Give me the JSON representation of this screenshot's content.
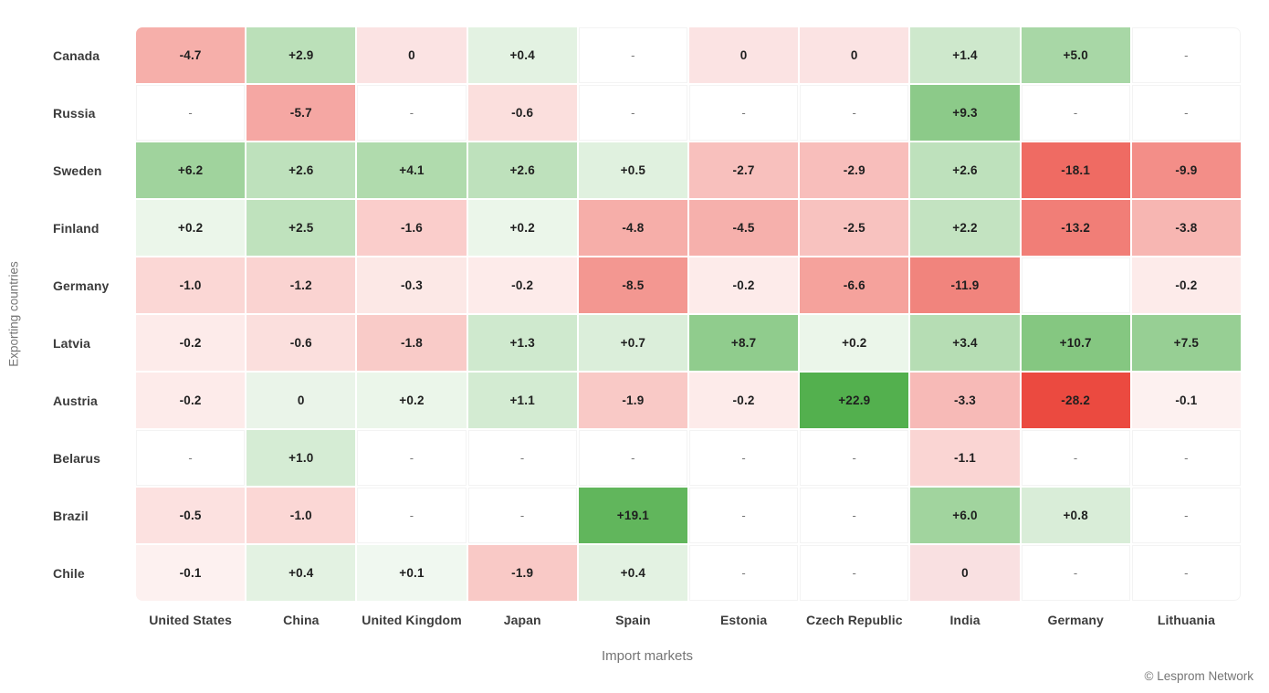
{
  "chart_data": {
    "type": "heatmap",
    "title": "",
    "xlabel": "Import markets",
    "ylabel": "Exporting countries",
    "legend_position": "none",
    "grid": "2px white separators between cells",
    "colors": {
      "positive_max": "#53b04e",
      "negative_max": "#eb4a40",
      "neutral_empty": "#ffffff",
      "cell_text": "#1f1f1f",
      "label_text": "#3c3c3c",
      "axis_text": "#757575"
    },
    "columns": [
      "United States",
      "China",
      "United Kingdom",
      "Japan",
      "Spain",
      "Estonia",
      "Czech Republic",
      "India",
      "Germany",
      "Lithuania"
    ],
    "rows": [
      {
        "label": "Canada",
        "cells": [
          [
            "-4.7",
            "#f6afaa"
          ],
          [
            "+2.9",
            "#bbe0b9"
          ],
          [
            "0",
            "#fbe3e3"
          ],
          [
            "+0.4",
            "#e3f2e2"
          ],
          [
            "-",
            "#ffffff"
          ],
          [
            "0",
            "#fbe3e3"
          ],
          [
            "0",
            "#fbe3e3"
          ],
          [
            "+1.4",
            "#cee8cc"
          ],
          [
            "+5.0",
            "#a8d7a6"
          ],
          [
            "-",
            "#ffffff"
          ]
        ]
      },
      {
        "label": "Russia",
        "cells": [
          [
            "-",
            "#ffffff"
          ],
          [
            "-5.7",
            "#f5a7a3"
          ],
          [
            "-",
            "#ffffff"
          ],
          [
            "-0.6",
            "#fbdfdd"
          ],
          [
            "-",
            "#ffffff"
          ],
          [
            "-",
            "#ffffff"
          ],
          [
            "-",
            "#ffffff"
          ],
          [
            "+9.3",
            "#8cca89"
          ],
          [
            "-",
            "#ffffff"
          ],
          [
            "-",
            "#ffffff"
          ]
        ]
      },
      {
        "label": "Sweden",
        "cells": [
          [
            "+6.2",
            "#a0d39d"
          ],
          [
            "+2.6",
            "#bee1bc"
          ],
          [
            "+4.1",
            "#b0dbad"
          ],
          [
            "+2.6",
            "#bee1bc"
          ],
          [
            "+0.5",
            "#e0f1df"
          ],
          [
            "-2.7",
            "#f8c0bd"
          ],
          [
            "-2.9",
            "#f8bebb"
          ],
          [
            "+2.6",
            "#bee1bc"
          ],
          [
            "-18.1",
            "#ef6b63"
          ],
          [
            "-9.9",
            "#f38e88"
          ]
        ]
      },
      {
        "label": "Finland",
        "cells": [
          [
            "+0.2",
            "#ebf6ea"
          ],
          [
            "+2.5",
            "#bfe2bd"
          ],
          [
            "-1.6",
            "#facdcb"
          ],
          [
            "+0.2",
            "#ebf6ea"
          ],
          [
            "-4.8",
            "#f6aea9"
          ],
          [
            "-4.5",
            "#f6b0ac"
          ],
          [
            "-2.5",
            "#f8c2bf"
          ],
          [
            "+2.2",
            "#c3e3c1"
          ],
          [
            "-13.2",
            "#f17e77"
          ],
          [
            "-3.8",
            "#f7b6b2"
          ]
        ]
      },
      {
        "label": "Germany",
        "cells": [
          [
            "-1.0",
            "#fbd7d5"
          ],
          [
            "-1.2",
            "#fad3d1"
          ],
          [
            "-0.3",
            "#fce8e6"
          ],
          [
            "-0.2",
            "#fdebea"
          ],
          [
            "-8.5",
            "#f39791"
          ],
          [
            "-0.2",
            "#fdebea"
          ],
          [
            "-6.6",
            "#f5a29c"
          ],
          [
            "-11.9",
            "#f1847d"
          ],
          [
            "",
            "#ffffff"
          ],
          [
            "-0.2",
            "#fdebea"
          ]
        ]
      },
      {
        "label": "Latvia",
        "cells": [
          [
            "-0.2",
            "#fdebea"
          ],
          [
            "-0.6",
            "#fbdfdd"
          ],
          [
            "-1.8",
            "#f9cbc8"
          ],
          [
            "+1.3",
            "#cfe9ce"
          ],
          [
            "+0.7",
            "#dbeeda"
          ],
          [
            "+8.7",
            "#90cc8d"
          ],
          [
            "+0.2",
            "#ebf6ea"
          ],
          [
            "+3.4",
            "#b6ddb4"
          ],
          [
            "+10.7",
            "#85c781"
          ],
          [
            "+7.5",
            "#97cf94"
          ]
        ]
      },
      {
        "label": "Austria",
        "cells": [
          [
            "-0.2",
            "#fdebea"
          ],
          [
            "0",
            "#eaf4e9"
          ],
          [
            "+0.2",
            "#ebf6ea"
          ],
          [
            "+1.1",
            "#d3ebd2"
          ],
          [
            "-1.9",
            "#f9c9c6"
          ],
          [
            "-0.2",
            "#fdebea"
          ],
          [
            "+22.9",
            "#53b04e"
          ],
          [
            "-3.3",
            "#f7bab7"
          ],
          [
            "-28.2",
            "#eb4a40"
          ],
          [
            "-0.1",
            "#fdf1f0"
          ]
        ]
      },
      {
        "label": "Belarus",
        "cells": [
          [
            "-",
            "#ffffff"
          ],
          [
            "+1.0",
            "#d5ecd4"
          ],
          [
            "-",
            "#ffffff"
          ],
          [
            "-",
            "#ffffff"
          ],
          [
            "-",
            "#ffffff"
          ],
          [
            "-",
            "#ffffff"
          ],
          [
            "-",
            "#ffffff"
          ],
          [
            "-1.1",
            "#fad5d3"
          ],
          [
            "-",
            "#ffffff"
          ],
          [
            "-",
            "#ffffff"
          ]
        ]
      },
      {
        "label": "Brazil",
        "cells": [
          [
            "-0.5",
            "#fce1e0"
          ],
          [
            "-1.0",
            "#fbd7d5"
          ],
          [
            "-",
            "#ffffff"
          ],
          [
            "-",
            "#ffffff"
          ],
          [
            "+19.1",
            "#61b65c"
          ],
          [
            "-",
            "#ffffff"
          ],
          [
            "-",
            "#ffffff"
          ],
          [
            "+6.0",
            "#a1d49e"
          ],
          [
            "+0.8",
            "#d9edd8"
          ],
          [
            "-",
            "#ffffff"
          ]
        ]
      },
      {
        "label": "Chile",
        "cells": [
          [
            "-0.1",
            "#fdf1f0"
          ],
          [
            "+0.4",
            "#e3f2e2"
          ],
          [
            "+0.1",
            "#f0f8f0"
          ],
          [
            "-1.9",
            "#f9c9c6"
          ],
          [
            "+0.4",
            "#e3f2e2"
          ],
          [
            "-",
            "#ffffff"
          ],
          [
            "-",
            "#ffffff"
          ],
          [
            "0",
            "#f9e0e1"
          ],
          [
            "-",
            "#ffffff"
          ],
          [
            "-",
            "#ffffff"
          ]
        ]
      }
    ],
    "footer": "© Lesprom Network"
  }
}
